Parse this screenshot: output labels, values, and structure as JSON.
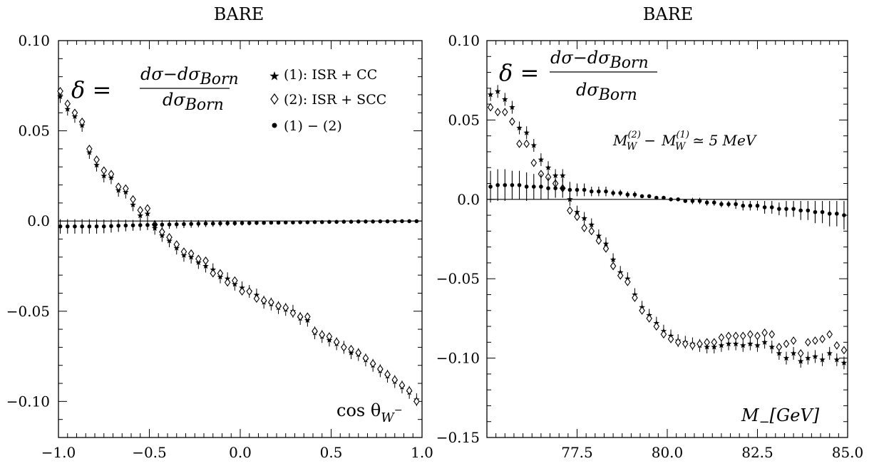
{
  "chart_data": [
    {
      "type": "scatter",
      "title": "BARE",
      "xlabel": "cos θ",
      "xlabel_sub": "W",
      "xlabel_sup": "−",
      "xlim": [
        -1.0,
        1.0
      ],
      "ylim": [
        -0.12,
        0.1
      ],
      "xticks": [
        -1.0,
        -0.5,
        0.0,
        0.5,
        1.0
      ],
      "xtick_labels": [
        "−1.0",
        "−0.5",
        "0.0",
        "0.5",
        "1.0"
      ],
      "yticks": [
        -0.1,
        -0.05,
        0.0,
        0.05,
        0.1
      ],
      "ytick_labels": [
        "−0.10",
        "−0.05",
        "0.0",
        "0.05",
        "0.10"
      ],
      "formula": {
        "delta": "δ =",
        "numerator": "dσ−dσ",
        "denominator": "dσ",
        "sub": "Born"
      },
      "legend": [
        {
          "marker": "star",
          "label": "(1): ISR + CC"
        },
        {
          "marker": "diamond",
          "label": "(2): ISR + SCC"
        },
        {
          "marker": "dot",
          "label": "(1) − (2)"
        }
      ],
      "legend_position": "top-right",
      "grid": false,
      "series": [
        {
          "name": "(1): ISR + CC",
          "marker": "star",
          "x": [
            -0.99,
            -0.95,
            -0.91,
            -0.87,
            -0.83,
            -0.79,
            -0.75,
            -0.71,
            -0.67,
            -0.63,
            -0.59,
            -0.55,
            -0.51,
            -0.47,
            -0.43,
            -0.39,
            -0.35,
            -0.31,
            -0.27,
            -0.23,
            -0.19,
            -0.15,
            -0.11,
            -0.07,
            -0.03,
            0.01,
            0.05,
            0.09,
            0.13,
            0.17,
            0.21,
            0.25,
            0.29,
            0.33,
            0.37,
            0.41,
            0.45,
            0.49,
            0.53,
            0.57,
            0.61,
            0.65,
            0.69,
            0.73,
            0.77,
            0.81,
            0.85,
            0.89,
            0.93,
            0.97
          ],
          "y": [
            0.069,
            0.062,
            0.058,
            0.053,
            0.038,
            0.031,
            0.025,
            0.024,
            0.017,
            0.016,
            0.009,
            0.003,
            0.004,
            -0.004,
            -0.008,
            -0.011,
            -0.015,
            -0.019,
            -0.02,
            -0.023,
            -0.025,
            -0.027,
            -0.031,
            -0.032,
            -0.035,
            -0.037,
            -0.039,
            -0.041,
            -0.045,
            -0.046,
            -0.048,
            -0.049,
            -0.05,
            -0.054,
            -0.055,
            -0.062,
            -0.064,
            -0.066,
            -0.068,
            -0.07,
            -0.073,
            -0.074,
            -0.077,
            -0.08,
            -0.083,
            -0.086,
            -0.089,
            -0.092,
            -0.095,
            -0.099
          ]
        },
        {
          "name": "(2): ISR + SCC",
          "marker": "diamond",
          "x": [
            -0.99,
            -0.95,
            -0.91,
            -0.87,
            -0.83,
            -0.79,
            -0.75,
            -0.71,
            -0.67,
            -0.63,
            -0.59,
            -0.55,
            -0.51,
            -0.47,
            -0.43,
            -0.39,
            -0.35,
            -0.31,
            -0.27,
            -0.23,
            -0.19,
            -0.15,
            -0.11,
            -0.07,
            -0.03,
            0.01,
            0.05,
            0.09,
            0.13,
            0.17,
            0.21,
            0.25,
            0.29,
            0.33,
            0.37,
            0.41,
            0.45,
            0.49,
            0.53,
            0.57,
            0.61,
            0.65,
            0.69,
            0.73,
            0.77,
            0.81,
            0.85,
            0.89,
            0.93,
            0.97
          ],
          "y": [
            0.072,
            0.065,
            0.06,
            0.055,
            0.04,
            0.034,
            0.028,
            0.026,
            0.019,
            0.018,
            0.012,
            0.006,
            0.007,
            -0.002,
            -0.006,
            -0.009,
            -0.013,
            -0.017,
            -0.018,
            -0.021,
            -0.022,
            -0.029,
            -0.029,
            -0.034,
            -0.033,
            -0.039,
            -0.039,
            -0.043,
            -0.044,
            -0.045,
            -0.047,
            -0.048,
            -0.051,
            -0.053,
            -0.053,
            -0.061,
            -0.063,
            -0.064,
            -0.067,
            -0.07,
            -0.071,
            -0.073,
            -0.076,
            -0.079,
            -0.082,
            -0.085,
            -0.088,
            -0.091,
            -0.094,
            -0.1
          ]
        },
        {
          "name": "(1) − (2)",
          "marker": "dot",
          "x": [
            -0.99,
            -0.95,
            -0.91,
            -0.87,
            -0.83,
            -0.79,
            -0.75,
            -0.71,
            -0.67,
            -0.63,
            -0.59,
            -0.55,
            -0.51,
            -0.47,
            -0.43,
            -0.39,
            -0.35,
            -0.31,
            -0.27,
            -0.23,
            -0.19,
            -0.15,
            -0.11,
            -0.07,
            -0.03,
            0.01,
            0.05,
            0.09,
            0.13,
            0.17,
            0.21,
            0.25,
            0.29,
            0.33,
            0.37,
            0.41,
            0.45,
            0.49,
            0.53,
            0.57,
            0.61,
            0.65,
            0.69,
            0.73,
            0.77,
            0.81,
            0.85,
            0.89,
            0.93,
            0.97
          ],
          "y": [
            -0.003,
            -0.003,
            -0.003,
            -0.003,
            -0.003,
            -0.003,
            -0.003,
            -0.0028,
            -0.0026,
            -0.0025,
            -0.0024,
            -0.0023,
            -0.0022,
            -0.0021,
            -0.002,
            -0.0019,
            -0.0018,
            -0.0017,
            -0.0016,
            -0.0015,
            -0.0014,
            -0.0014,
            -0.0013,
            -0.0012,
            -0.0012,
            -0.0011,
            -0.0011,
            -0.001,
            -0.001,
            -0.0009,
            -0.0009,
            -0.0008,
            -0.0008,
            -0.0007,
            -0.0007,
            -0.0006,
            -0.0006,
            -0.0005,
            -0.0005,
            -0.0004,
            -0.0004,
            -0.0003,
            -0.0003,
            -0.0003,
            -0.0002,
            -0.0002,
            -0.0002,
            -0.0001,
            -0.0001,
            -0.0001
          ],
          "err": [
            0.004,
            0.004,
            0.004,
            0.004,
            0.004,
            0.004,
            0.0038,
            0.0036,
            0.0034,
            0.0032,
            0.003,
            0.003,
            0.0028,
            0.0026,
            0.0025,
            0.0024,
            0.0023,
            0.0022,
            0.0021,
            0.002,
            0.0019,
            0.0018,
            0.0017,
            0.0016,
            0.0015,
            0.0014,
            0.0013,
            0.0012,
            0.0011,
            0.001,
            0.001,
            0.001,
            0.0009,
            0.0009,
            0.0008,
            0.0008,
            0.0007,
            0.0007,
            0.0006,
            0.0006,
            0.0005,
            0.0005,
            0.0005,
            0.0004,
            0.0004,
            0.0004,
            0.0003,
            0.0003,
            0.0003,
            0.0003
          ]
        }
      ]
    },
    {
      "type": "scatter",
      "title": "BARE",
      "xlabel": "M",
      "xlabel_sub": "−",
      "xlabel_bracket": "[GeV]",
      "xlim": [
        75.0,
        85.0
      ],
      "ylim": [
        -0.15,
        0.1
      ],
      "xticks": [
        77.5,
        80.0,
        82.5,
        85.0
      ],
      "xtick_labels": [
        "77.5",
        "80.0",
        "82.5",
        "85.0"
      ],
      "yticks": [
        -0.15,
        -0.1,
        -0.05,
        0.0,
        0.05,
        0.1
      ],
      "ytick_labels": [
        "−0.15",
        "−0.10",
        "−0.05",
        "0.0",
        "0.05",
        "0.10"
      ],
      "formula": {
        "delta": "δ =",
        "numerator": "dσ−dσ",
        "denominator": "dσ",
        "sub": "Born"
      },
      "annotation": {
        "m": "M",
        "w": "W",
        "sup2": "(2)",
        "sup1": "(1)",
        "minus": "−",
        "approx": "≃ 5 MeV"
      },
      "grid": false,
      "series": [
        {
          "name": "(1): ISR + CC",
          "marker": "star",
          "x": [
            75.1,
            75.3,
            75.5,
            75.7,
            75.9,
            76.1,
            76.3,
            76.5,
            76.7,
            76.9,
            77.1,
            77.3,
            77.5,
            77.7,
            77.9,
            78.1,
            78.3,
            78.5,
            78.7,
            78.9,
            79.1,
            79.3,
            79.5,
            79.7,
            79.9,
            80.1,
            80.3,
            80.5,
            80.7,
            80.9,
            81.1,
            81.3,
            81.5,
            81.7,
            81.9,
            82.1,
            82.3,
            82.5,
            82.7,
            82.9,
            83.1,
            83.3,
            83.5,
            83.7,
            83.9,
            84.1,
            84.3,
            84.5,
            84.7,
            84.9
          ],
          "y": [
            0.066,
            0.068,
            0.063,
            0.058,
            0.045,
            0.042,
            0.034,
            0.025,
            0.02,
            0.015,
            0.015,
            0.0,
            -0.008,
            -0.012,
            -0.016,
            -0.023,
            -0.028,
            -0.038,
            -0.046,
            -0.05,
            -0.06,
            -0.068,
            -0.073,
            -0.078,
            -0.083,
            -0.086,
            -0.089,
            -0.09,
            -0.091,
            -0.092,
            -0.093,
            -0.093,
            -0.092,
            -0.091,
            -0.091,
            -0.092,
            -0.091,
            -0.092,
            -0.09,
            -0.093,
            -0.097,
            -0.1,
            -0.097,
            -0.102,
            -0.1,
            -0.099,
            -0.101,
            -0.097,
            -0.101,
            -0.103
          ]
        },
        {
          "name": "(2): ISR + SCC",
          "marker": "diamond",
          "x": [
            75.1,
            75.3,
            75.5,
            75.7,
            75.9,
            76.1,
            76.3,
            76.5,
            76.7,
            76.9,
            77.1,
            77.3,
            77.5,
            77.7,
            77.9,
            78.1,
            78.3,
            78.5,
            78.7,
            78.9,
            79.1,
            79.3,
            79.5,
            79.7,
            79.9,
            80.1,
            80.3,
            80.5,
            80.7,
            80.9,
            81.1,
            81.3,
            81.5,
            81.7,
            81.9,
            82.1,
            82.3,
            82.5,
            82.7,
            82.9,
            83.1,
            83.3,
            83.5,
            83.7,
            83.9,
            84.1,
            84.3,
            84.5,
            84.7,
            84.9
          ],
          "y": [
            0.058,
            0.055,
            0.055,
            0.049,
            0.035,
            0.035,
            0.023,
            0.016,
            0.014,
            0.01,
            0.007,
            -0.007,
            -0.011,
            -0.018,
            -0.02,
            -0.026,
            -0.031,
            -0.042,
            -0.048,
            -0.052,
            -0.062,
            -0.07,
            -0.075,
            -0.08,
            -0.085,
            -0.088,
            -0.09,
            -0.091,
            -0.092,
            -0.091,
            -0.09,
            -0.09,
            -0.087,
            -0.086,
            -0.086,
            -0.086,
            -0.085,
            -0.086,
            -0.084,
            -0.085,
            -0.093,
            -0.091,
            -0.089,
            -0.097,
            -0.09,
            -0.089,
            -0.088,
            -0.085,
            -0.092,
            -0.095
          ]
        },
        {
          "name": "(1) − (2)",
          "marker": "dot",
          "x": [
            75.1,
            75.3,
            75.5,
            75.7,
            75.9,
            76.1,
            76.3,
            76.5,
            76.7,
            76.9,
            77.1,
            77.3,
            77.5,
            77.7,
            77.9,
            78.1,
            78.3,
            78.5,
            78.7,
            78.9,
            79.1,
            79.3,
            79.5,
            79.7,
            79.9,
            80.1,
            80.3,
            80.5,
            80.7,
            80.9,
            81.1,
            81.3,
            81.5,
            81.7,
            81.9,
            82.1,
            82.3,
            82.5,
            82.7,
            82.9,
            83.1,
            83.3,
            83.5,
            83.7,
            83.9,
            84.1,
            84.3,
            84.5,
            84.7,
            84.9
          ],
          "y": [
            0.008,
            0.009,
            0.009,
            0.009,
            0.009,
            0.008,
            0.008,
            0.008,
            0.007,
            0.007,
            0.007,
            0.006,
            0.006,
            0.006,
            0.005,
            0.005,
            0.005,
            0.004,
            0.004,
            0.003,
            0.003,
            0.002,
            0.002,
            0.001,
            0.001,
            0.0,
            0.0,
            -0.001,
            -0.001,
            -0.001,
            -0.002,
            -0.002,
            -0.003,
            -0.003,
            -0.003,
            -0.004,
            -0.004,
            -0.004,
            -0.005,
            -0.005,
            -0.006,
            -0.006,
            -0.006,
            -0.007,
            -0.007,
            -0.008,
            -0.008,
            -0.009,
            -0.009,
            -0.01
          ],
          "err": [
            0.01,
            0.01,
            0.01,
            0.009,
            0.009,
            0.009,
            0.008,
            0.008,
            0.007,
            0.006,
            0.006,
            0.005,
            0.004,
            0.004,
            0.003,
            0.003,
            0.003,
            0.002,
            0.002,
            0.002,
            0.002,
            0.001,
            0.001,
            0.001,
            0.001,
            0.001,
            0.001,
            0.001,
            0.002,
            0.002,
            0.002,
            0.002,
            0.002,
            0.002,
            0.003,
            0.003,
            0.003,
            0.003,
            0.004,
            0.004,
            0.004,
            0.005,
            0.005,
            0.006,
            0.006,
            0.007,
            0.007,
            0.008,
            0.008,
            0.009
          ]
        }
      ]
    }
  ]
}
